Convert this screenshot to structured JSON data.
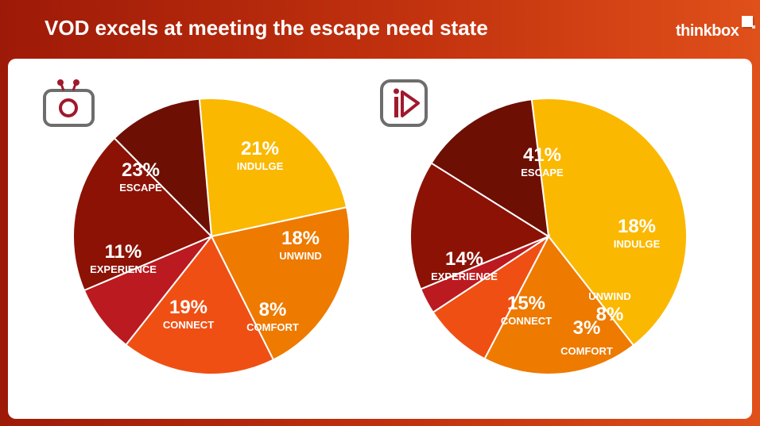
{
  "header": {
    "title": "VOD excels at meeting the escape need state",
    "brand": "thinkbox"
  },
  "icons": {
    "left": "tv-icon",
    "right": "vod-play-icon"
  },
  "chart_data": [
    {
      "type": "pie",
      "labels": [
        "ESCAPE",
        "INDULGE",
        "UNWIND",
        "COMFORT",
        "CONNECT",
        "EXPERIENCE"
      ],
      "values": [
        23,
        21,
        18,
        8,
        19,
        11
      ],
      "display": [
        "23%",
        "21%",
        "18%",
        "8%",
        "19%",
        "11%"
      ],
      "colors": [
        "#fbb800",
        "#ee7a00",
        "#f04f14",
        "#bb1a20",
        "#8c1206",
        "#6e0f04"
      ]
    },
    {
      "type": "pie",
      "labels": [
        "ESCAPE",
        "INDULGE",
        "UNWIND",
        "COMFORT",
        "CONNECT",
        "EXPERIENCE"
      ],
      "values": [
        41,
        18,
        8,
        3,
        15,
        14
      ],
      "display": [
        "41%",
        "18%",
        "8%",
        "3%",
        "15%",
        "14%"
      ],
      "colors": [
        "#fbb800",
        "#ee7a00",
        "#f04f14",
        "#bb1a20",
        "#8c1206",
        "#6e0f04"
      ]
    }
  ]
}
